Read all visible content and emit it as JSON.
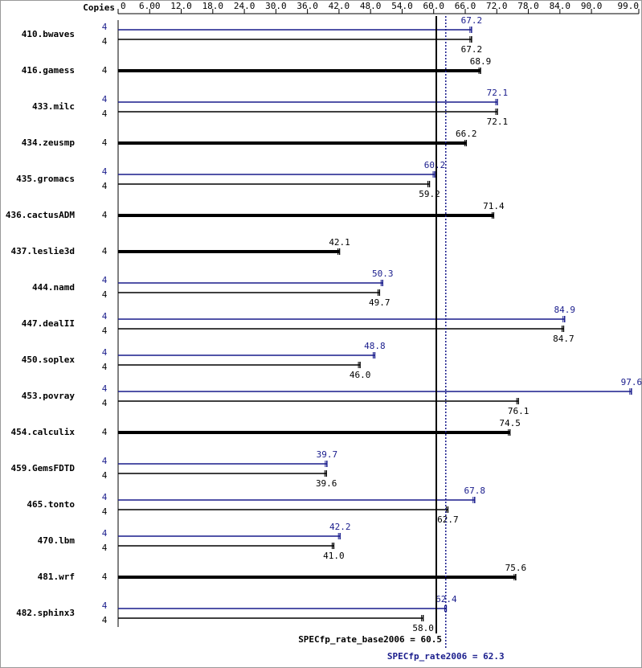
{
  "chart_data": {
    "type": "bar",
    "copies_label": "Copies",
    "xlim": [
      0,
      99
    ],
    "xticks": [
      0,
      {
        "value": 6,
        "label": "6.00"
      },
      {
        "value": 12,
        "label": "12.0"
      },
      {
        "value": 18,
        "label": "18.0"
      },
      {
        "value": 24,
        "label": "24.0"
      },
      {
        "value": 30,
        "label": "30.0"
      },
      {
        "value": 36,
        "label": "36.0"
      },
      {
        "value": 42,
        "label": "42.0"
      },
      {
        "value": 48,
        "label": "48.0"
      },
      {
        "value": 54,
        "label": "54.0"
      },
      {
        "value": 60,
        "label": "60.0"
      },
      {
        "value": 66,
        "label": "66.0"
      },
      {
        "value": 72,
        "label": "72.0"
      },
      {
        "value": 78,
        "label": "78.0"
      },
      {
        "value": 84,
        "label": "84.0"
      },
      {
        "value": 90,
        "label": "90.0"
      },
      {
        "value": 99,
        "label": "99.0"
      }
    ],
    "categories": [
      "410.bwaves",
      "416.gamess",
      "433.milc",
      "434.zeusmp",
      "435.gromacs",
      "436.cactusADM",
      "437.leslie3d",
      "444.namd",
      "447.dealII",
      "450.soplex",
      "453.povray",
      "454.calculix",
      "459.GemsFDTD",
      "465.tonto",
      "470.lbm",
      "481.wrf",
      "482.sphinx3"
    ],
    "series": [
      {
        "color": "#000000",
        "copies": [
          4,
          4,
          4,
          4,
          4,
          4,
          4,
          4,
          4,
          4,
          4,
          4,
          4,
          4,
          4,
          4,
          4
        ],
        "values": [
          67.2,
          68.9,
          72.1,
          66.2,
          59.2,
          71.4,
          42.1,
          49.7,
          84.7,
          46.0,
          76.1,
          74.5,
          39.6,
          62.7,
          41.0,
          75.6,
          58.0
        ],
        "value_labels": [
          "67.2",
          "68.9",
          "72.1",
          "66.2",
          "59.2",
          "71.4",
          "42.1",
          "49.7",
          "84.7",
          "46.0",
          "76.1",
          "74.5",
          "39.6",
          "62.7",
          "41.0",
          "75.6",
          "58.0"
        ]
      },
      {
        "color": "#191c8c",
        "copies": [
          4,
          null,
          4,
          null,
          4,
          null,
          null,
          4,
          4,
          4,
          4,
          null,
          4,
          4,
          4,
          null,
          4
        ],
        "values": [
          67.2,
          null,
          72.1,
          null,
          60.2,
          null,
          null,
          50.3,
          84.9,
          48.8,
          97.6,
          null,
          39.7,
          67.8,
          42.2,
          null,
          62.4
        ],
        "value_labels": [
          "67.2",
          null,
          "72.1",
          null,
          "60.2",
          null,
          null,
          "50.3",
          "84.9",
          "48.8",
          "97.6",
          null,
          "39.7",
          "67.8",
          "42.2",
          null,
          "62.4"
        ]
      }
    ],
    "reference_lines": [
      {
        "label": "SPECfp_rate_base2006 = 60.5",
        "value": 60.5,
        "color": "#000000",
        "style": "solid"
      },
      {
        "label": "SPECfp_rate2006 = 62.3",
        "value": 62.3,
        "color": "#191c8c",
        "style": "dotted"
      }
    ]
  }
}
